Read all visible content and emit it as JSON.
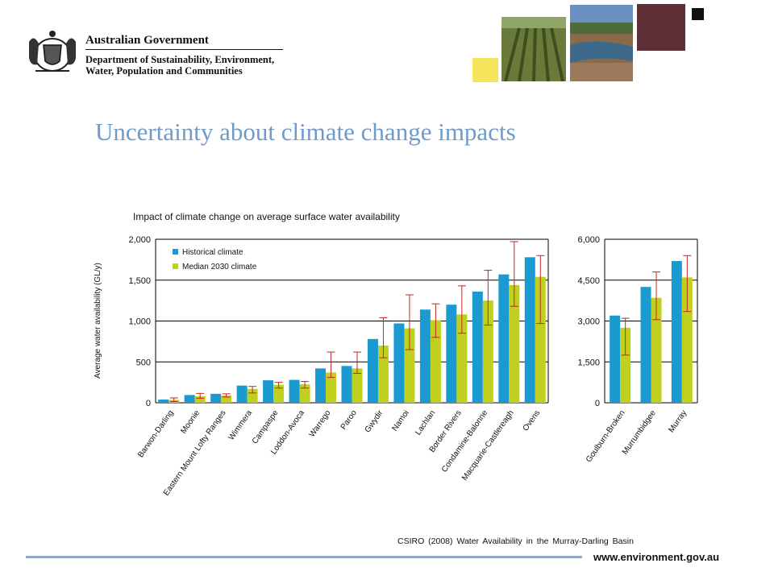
{
  "header": {
    "gov_title": "Australian Government",
    "dept_line1": "Department of Sustainability, Environment,",
    "dept_line2": "Water, Population and Communities",
    "colors": {
      "yellow": "#f5e35a",
      "maroon": "#5d3038",
      "black": "#111111"
    }
  },
  "slide": {
    "title": "Uncertainty about climate change impacts",
    "chart_title": "Impact of climate change on average surface water availability",
    "source": "CSIRO (2008) Water Availability in the Murray-Darling Basin",
    "footer_url": "www.environment.gov.au"
  },
  "chart_data": [
    {
      "type": "bar",
      "ylabel": "Average water availability (GL/y)",
      "ylim": [
        0,
        2000
      ],
      "yticks": [
        "0",
        "500",
        "1,000",
        "1,500",
        "2,000"
      ],
      "grid": true,
      "legend": "top-left",
      "categories": [
        "Barwon-Darling",
        "Moonie",
        "Eastern Mount Lofty Ranges",
        "Wimmera",
        "Campaspe",
        "Loddon-Avoca",
        "Warrego",
        "Paroo",
        "Gwydir",
        "Namoi",
        "Lachlan",
        "Border Rivers",
        "Condamine-Balonne",
        "Macquarie-Castlereagh",
        "Ovens"
      ],
      "series": [
        {
          "name": "Historical climate",
          "color": "#1a9ad0",
          "values": [
            40,
            95,
            110,
            210,
            275,
            280,
            420,
            450,
            780,
            970,
            1140,
            1200,
            1360,
            1570,
            1780
          ]
        },
        {
          "name": "Median 2030 climate",
          "color": "#bfd11e",
          "values": [
            35,
            80,
            90,
            170,
            220,
            225,
            370,
            420,
            700,
            910,
            1010,
            1080,
            1250,
            1440,
            1540
          ],
          "error_low": [
            15,
            55,
            70,
            120,
            180,
            180,
            310,
            360,
            550,
            650,
            800,
            850,
            950,
            1180,
            970
          ],
          "error_high": [
            60,
            115,
            110,
            200,
            250,
            260,
            620,
            620,
            1040,
            1320,
            1210,
            1430,
            1620,
            1970,
            1800
          ]
        }
      ]
    },
    {
      "type": "bar",
      "ylim": [
        0,
        6000
      ],
      "yticks": [
        "0",
        "1,500",
        "3,000",
        "4,500",
        "6,000"
      ],
      "grid": true,
      "categories": [
        "Goulburn-Broken",
        "Murrumbidgee",
        "Murray"
      ],
      "series": [
        {
          "name": "Historical climate",
          "color": "#1a9ad0",
          "values": [
            3200,
            4250,
            5200
          ]
        },
        {
          "name": "Median 2030 climate",
          "color": "#bfd11e",
          "values": [
            2750,
            3850,
            4600
          ],
          "error_low": [
            1750,
            3050,
            3350
          ],
          "error_high": [
            3100,
            4800,
            5400
          ]
        }
      ]
    }
  ]
}
